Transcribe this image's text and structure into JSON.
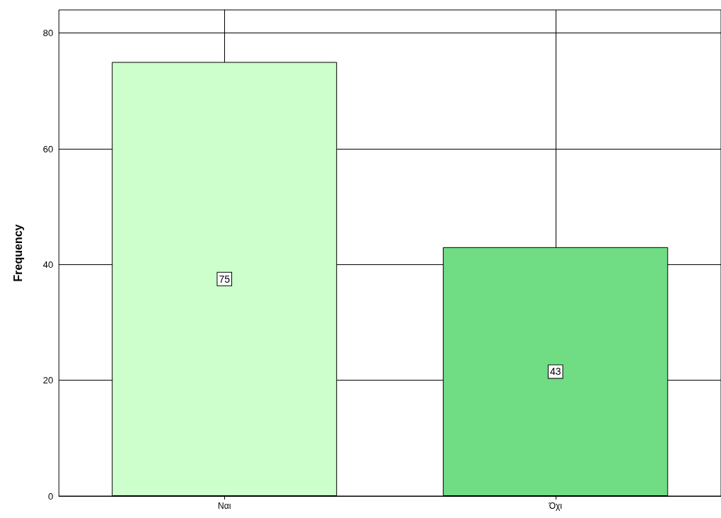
{
  "chart_data": {
    "type": "bar",
    "ylabel": "Frequency",
    "categories": [
      "Ναι",
      "Όχι"
    ],
    "values": [
      75,
      43
    ],
    "colors": [
      "#ccffcc",
      "#70dc84"
    ],
    "ylim": [
      0,
      84
    ],
    "yticks": [
      0,
      20,
      40,
      60,
      80
    ],
    "grid": true,
    "data_labels": true
  }
}
